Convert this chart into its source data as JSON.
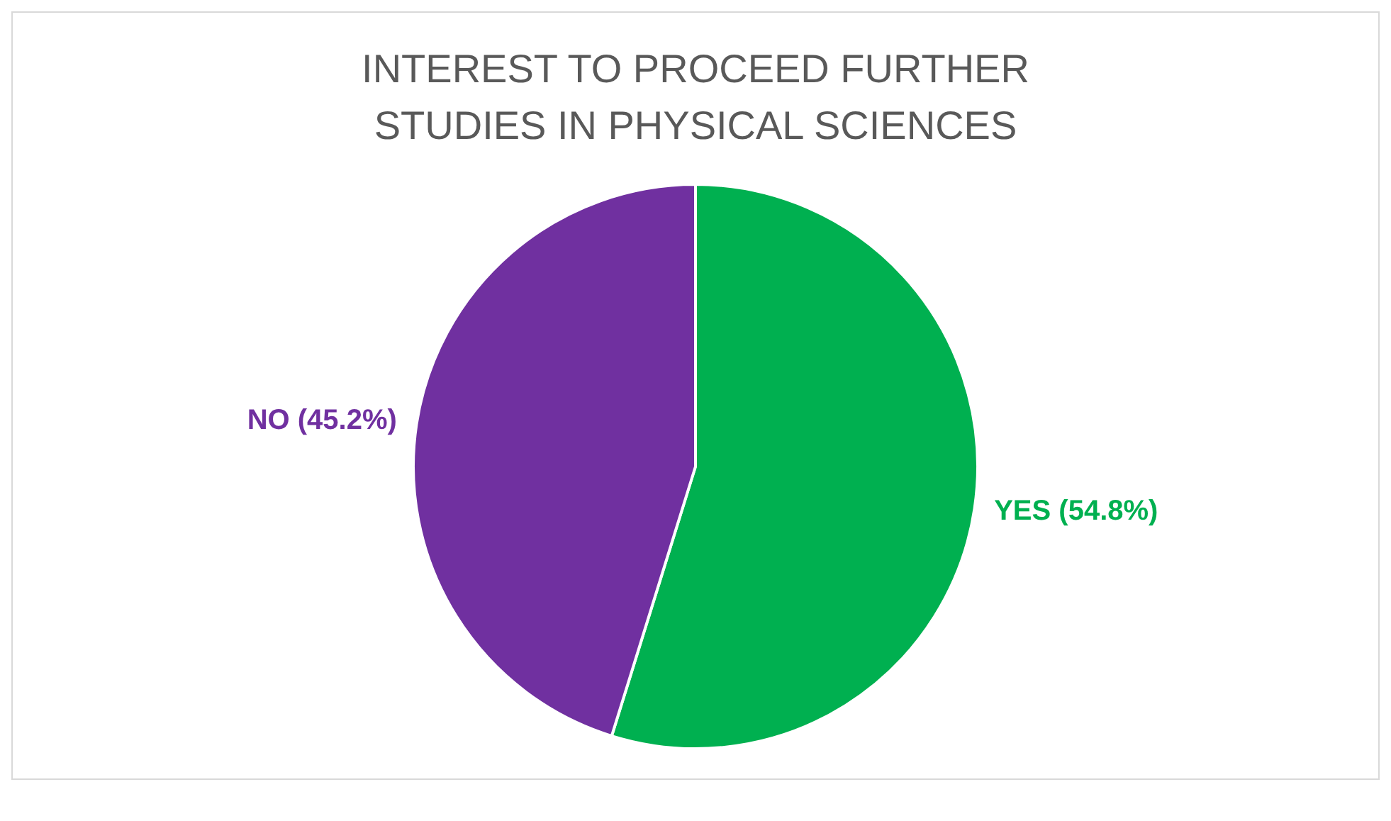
{
  "chart_data": {
    "type": "pie",
    "title": "INTEREST TO PROCEED FURTHER STUDIES IN PHYSICAL SCIENCES",
    "categories": [
      "YES",
      "NO"
    ],
    "values": [
      54.8,
      45.2
    ],
    "colors": [
      "#00b050",
      "#7030a0"
    ],
    "value_labels": [
      "(54.8%)",
      "(45.2%)"
    ],
    "legend": false
  }
}
